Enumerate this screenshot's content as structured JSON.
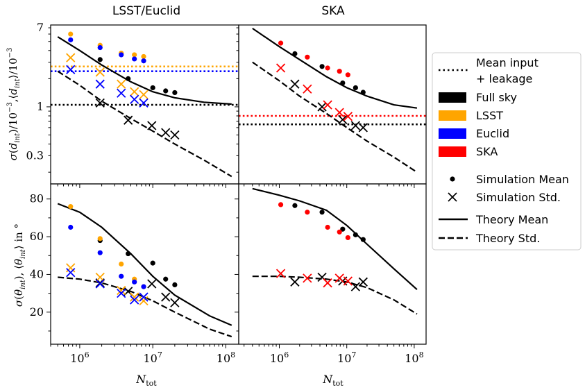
{
  "figure": {
    "col_titles": [
      "LSST/Euclid",
      "SKA"
    ],
    "xlabel": "N_tot",
    "ylabel_top": "σ(d_int)/10^-3 ,⟨d_int⟩/10^-3",
    "ylabel_bottom": "σ(θ_int), ⟨θ_int⟩ in °"
  },
  "legend": {
    "items": [
      {
        "label": "Mean input",
        "label2": "+ leakage",
        "kind": "dotted-line",
        "color": "#000000"
      },
      {
        "label": "Full sky",
        "kind": "patch",
        "color": "#000000"
      },
      {
        "label": "LSST",
        "kind": "patch",
        "color": "#ffa500"
      },
      {
        "label": "Euclid",
        "kind": "patch",
        "color": "#0000ff"
      },
      {
        "label": "SKA",
        "kind": "patch",
        "color": "#ff0000"
      },
      {
        "label": "Simulation Mean",
        "kind": "dot",
        "color": "#000000"
      },
      {
        "label": "Simulation Std.",
        "kind": "cross",
        "color": "#000000"
      },
      {
        "label": "Theory Mean",
        "kind": "solid-line",
        "color": "#000000"
      },
      {
        "label": "Theory Std.",
        "kind": "dashed-line",
        "color": "#000000"
      }
    ]
  },
  "colors": {
    "full_sky": "#000000",
    "lsst": "#ffa500",
    "euclid": "#0000ff",
    "ska": "#ff0000"
  },
  "chart_data": [
    {
      "id": "top-left",
      "type": "scatter",
      "title": "LSST/Euclid",
      "xscale": "log",
      "yscale": "log",
      "xlim": [
        400000,
        150000000
      ],
      "ylim": [
        0.15,
        7.5
      ],
      "yticks": [
        0.3,
        1,
        7
      ],
      "ytick_labels": [
        "0.3",
        "1",
        "7"
      ],
      "xticks": [
        1000000,
        10000000,
        100000000
      ],
      "xtick_labels": [
        "10^6",
        "10^7",
        "10^8"
      ],
      "xtick_show": false,
      "hlines": [
        {
          "y": 1.05,
          "color": "#000000"
        },
        {
          "y": 2.7,
          "color": "#ffa500"
        },
        {
          "y": 2.4,
          "color": "#0000ff"
        }
      ],
      "theory_mean": {
        "x": [
          500000,
          1000000,
          2000000,
          5000000,
          10000000,
          20000000,
          50000000,
          120000000
        ],
        "y": [
          5.6,
          4.0,
          2.8,
          1.85,
          1.45,
          1.25,
          1.12,
          1.07
        ]
      },
      "theory_std": {
        "x": [
          500000,
          1000000,
          2000000,
          5000000,
          10000000,
          20000000,
          50000000,
          120000000
        ],
        "y": [
          2.4,
          1.7,
          1.15,
          0.75,
          0.55,
          0.4,
          0.27,
          0.18
        ]
      },
      "series": [
        {
          "name": "Full sky",
          "color": "#000000",
          "mean": {
            "x": [
              1900000,
              4600000,
              10000000,
              15000000,
              20000000
            ],
            "y": [
              3.2,
              2.0,
              1.6,
              1.48,
              1.42
            ]
          },
          "std": {
            "x": [
              1900000,
              4600000,
              9700000,
              15000000,
              20000000
            ],
            "y": [
              1.1,
              0.72,
              0.63,
              0.53,
              0.5
            ]
          }
        },
        {
          "name": "LSST",
          "color": "#ffa500",
          "mean": {
            "x": [
              750000,
              1900000,
              3700000,
              5600000,
              7500000
            ],
            "y": [
              6.0,
              4.55,
              3.75,
              3.6,
              3.45
            ]
          },
          "std": {
            "x": [
              750000,
              1900000,
              3700000,
              5600000,
              7500000
            ],
            "y": [
              3.35,
              2.35,
              1.75,
              1.45,
              1.35
            ]
          }
        },
        {
          "name": "Euclid",
          "color": "#0000ff",
          "mean": {
            "x": [
              750000,
              1900000,
              3700000,
              5600000,
              7500000
            ],
            "y": [
              5.2,
              4.3,
              3.6,
              3.25,
              3.1
            ]
          },
          "std": {
            "x": [
              750000,
              1900000,
              3700000,
              5600000,
              7500000
            ],
            "y": [
              2.5,
              1.75,
              1.4,
              1.2,
              1.1
            ]
          }
        }
      ]
    },
    {
      "id": "top-right",
      "type": "scatter",
      "title": "SKA",
      "xscale": "log",
      "yscale": "log",
      "xlim": [
        250000,
        150000000
      ],
      "ylim": [
        0.15,
        7.5
      ],
      "xticks": [
        1000000,
        10000000,
        100000000
      ],
      "xtick_labels": [
        "10^6",
        "10^7",
        "10^8"
      ],
      "xtick_show": false,
      "ytick_show": false,
      "hlines": [
        {
          "y": 0.65,
          "color": "#000000"
        },
        {
          "y": 0.8,
          "color": "#ff0000"
        }
      ],
      "theory_mean": {
        "x": [
          400000,
          1000000,
          2000000,
          5000000,
          10000000,
          20000000,
          50000000,
          110000000
        ],
        "y": [
          6.9,
          4.4,
          3.2,
          2.1,
          1.6,
          1.3,
          1.05,
          0.97
        ]
      },
      "theory_std": {
        "x": [
          400000,
          1000000,
          2000000,
          5000000,
          10000000,
          20000000,
          50000000,
          110000000
        ],
        "y": [
          3.0,
          1.9,
          1.3,
          0.85,
          0.6,
          0.43,
          0.29,
          0.2
        ]
      },
      "series": [
        {
          "name": "Full sky",
          "color": "#000000",
          "mean": {
            "x": [
              1700000,
              4300000,
              8700000,
              13500000,
              17500000
            ],
            "y": [
              3.7,
              2.7,
              1.8,
              1.6,
              1.43
            ]
          },
          "std": {
            "x": [
              1700000,
              4300000,
              8700000,
              13500000,
              17500000
            ],
            "y": [
              1.75,
              1.0,
              0.73,
              0.63,
              0.6
            ]
          }
        },
        {
          "name": "SKA",
          "color": "#ff0000",
          "mean": {
            "x": [
              1050000,
              2600000,
              5200000,
              7800000,
              10400000
            ],
            "y": [
              4.8,
              3.4,
              2.6,
              2.4,
              2.2
            ]
          },
          "std": {
            "x": [
              1050000,
              2600000,
              5200000,
              7800000,
              10400000
            ],
            "y": [
              2.6,
              1.55,
              1.05,
              0.87,
              0.79
            ]
          }
        }
      ]
    },
    {
      "id": "bottom-left",
      "type": "scatter",
      "xscale": "log",
      "yscale": "linear",
      "xlim": [
        400000,
        150000000
      ],
      "ylim": [
        3,
        88
      ],
      "yticks": [
        20,
        40,
        60,
        80
      ],
      "ytick_labels": [
        "20",
        "40",
        "60",
        "80"
      ],
      "xticks": [
        1000000,
        10000000,
        100000000
      ],
      "xtick_labels": [
        "10^6",
        "10^7",
        "10^8"
      ],
      "theory_mean": {
        "x": [
          500000,
          1000000,
          2000000,
          5000000,
          10000000,
          20000000,
          60000000,
          120000000
        ],
        "y": [
          77.5,
          73,
          65,
          51,
          39,
          29,
          18,
          13
        ]
      },
      "theory_std": {
        "x": [
          500000,
          1000000,
          2000000,
          5000000,
          10000000,
          20000000,
          60000000,
          120000000
        ],
        "y": [
          38.5,
          37.5,
          35.5,
          31,
          26,
          20,
          11,
          7
        ]
      },
      "series": [
        {
          "name": "Full sky",
          "color": "#000000",
          "mean": {
            "x": [
              1900000,
              4600000,
              10000000,
              15000000,
              20000000
            ],
            "y": [
              58,
              51,
              46,
              37.5,
              34.5
            ]
          },
          "std": {
            "x": [
              1900000,
              4600000,
              9700000,
              15000000,
              20000000
            ],
            "y": [
              35.5,
              31,
              35,
              28,
              25
            ]
          }
        },
        {
          "name": "LSST",
          "color": "#ffa500",
          "mean": {
            "x": [
              750000,
              1900000,
              3700000,
              5600000,
              7500000
            ],
            "y": [
              76,
              59,
              45.5,
              37.5,
              33.5
            ]
          },
          "std": {
            "x": [
              750000,
              1900000,
              3700000,
              5600000,
              7500000
            ],
            "y": [
              43.5,
              38.5,
              31.5,
              28,
              26
            ]
          }
        },
        {
          "name": "Euclid",
          "color": "#0000ff",
          "mean": {
            "x": [
              750000,
              1900000,
              3700000,
              5600000,
              7500000
            ],
            "y": [
              65,
              51.5,
              39,
              36,
              33.5
            ]
          },
          "std": {
            "x": [
              750000,
              1900000,
              3700000,
              5600000,
              7500000
            ],
            "y": [
              41,
              35,
              30,
              26.5,
              28
            ]
          }
        }
      ]
    },
    {
      "id": "bottom-right",
      "type": "scatter",
      "xscale": "log",
      "yscale": "linear",
      "xlim": [
        250000,
        150000000
      ],
      "ylim": [
        3,
        88
      ],
      "xticks": [
        1000000,
        10000000,
        100000000
      ],
      "xtick_labels": [
        "10^6",
        "10^7",
        "10^8"
      ],
      "ytick_show": false,
      "theory_mean": {
        "x": [
          400000,
          1000000,
          2000000,
          5000000,
          10000000,
          20000000,
          50000000,
          110000000
        ],
        "y": [
          85.5,
          82,
          79,
          74,
          66,
          56,
          43,
          32
        ]
      },
      "theory_std": {
        "x": [
          400000,
          1000000,
          2000000,
          5000000,
          10000000,
          20000000,
          50000000,
          110000000
        ],
        "y": [
          39,
          39,
          38.5,
          37.5,
          36,
          33,
          26.5,
          19
        ]
      },
      "series": [
        {
          "name": "Full sky",
          "color": "#000000",
          "mean": {
            "x": [
              1700000,
              4300000,
              8700000,
              13500000,
              17500000
            ],
            "y": [
              76.5,
              73,
              64,
              61,
              58.5
            ]
          },
          "std": {
            "x": [
              1700000,
              4300000,
              8700000,
              13500000,
              17500000
            ],
            "y": [
              36,
              38.5,
              36.5,
              33.5,
              36
            ]
          }
        },
        {
          "name": "SKA",
          "color": "#ff0000",
          "mean": {
            "x": [
              1050000,
              2600000,
              5200000,
              7800000,
              10400000
            ],
            "y": [
              77,
              73,
              65,
              62.5,
              59.5
            ]
          },
          "std": {
            "x": [
              1050000,
              2600000,
              5200000,
              7800000,
              10400000
            ],
            "y": [
              40.5,
              38,
              35.5,
              38,
              36.5
            ]
          }
        }
      ]
    }
  ]
}
